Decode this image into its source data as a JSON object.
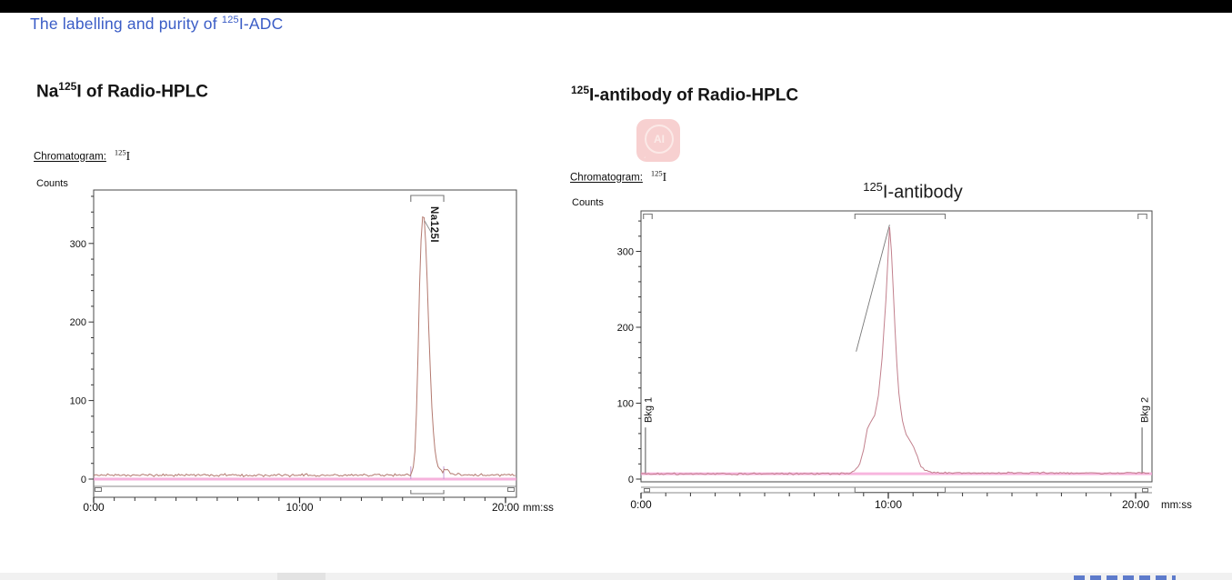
{
  "slide": {
    "title_prefix": "The labelling and purity of ",
    "title_sup": "125",
    "title_suffix": "I-ADC",
    "accent_color": "#3a5cc6",
    "topbar_color": "#000000"
  },
  "panels": {
    "left": {
      "heading_prefix": "Na",
      "heading_sup": "125",
      "heading_suffix": "I of Radio-HPLC",
      "chromatogram_label": "Chromatogram:",
      "isotope_sup": "125",
      "isotope_symbol": "I",
      "counts_label": "Counts"
    },
    "right": {
      "heading_sup": "125",
      "heading_rest": "I-antibody of Radio-HPLC",
      "chromatogram_label": "Chromatogram:",
      "isotope_sup": "125",
      "isotope_symbol": "I",
      "counts_label": "Counts",
      "annotation_sup": "125",
      "annotation_rest": "I-antibody",
      "watermark_text": "AI"
    }
  },
  "footer": {
    "bar_color": "#f1f1f1",
    "segment_color": "#e3e3e3",
    "logo_marks_color": "#4d6ec7"
  },
  "chart_data": [
    {
      "id": "left",
      "type": "line",
      "title": "",
      "ylabel": "Counts",
      "x_unit": "mm:ss",
      "x_axis": {
        "max_min": 20.5,
        "minor_step_min": 1,
        "ticks": [
          {
            "t": 0,
            "label": "0:00"
          },
          {
            "t": 10,
            "label": "10:00"
          },
          {
            "t": 20,
            "label": "20:00"
          }
        ]
      },
      "y_axis": {
        "max": 365,
        "minor_step": 20,
        "major_step": 100,
        "labels": [
          0,
          100,
          200,
          300
        ]
      },
      "colors": {
        "trace": "#b3796f",
        "baseline": "#f4a0d4",
        "frame": "#4a4a4a",
        "marker_gray": "#8a8a8a",
        "integration": "#c39bd3"
      },
      "baseline_counts": 5,
      "noise_amp": 2.1,
      "series": [
        {
          "name": "125I trace",
          "points": [
            [
              0,
              5
            ],
            [
              15.35,
              5
            ],
            [
              15.5,
              10
            ],
            [
              15.62,
              40
            ],
            [
              15.72,
              120
            ],
            [
              15.82,
              240
            ],
            [
              15.92,
              320
            ],
            [
              16.0,
              340
            ],
            [
              16.05,
              333
            ],
            [
              16.15,
              290
            ],
            [
              16.3,
              170
            ],
            [
              16.45,
              75
            ],
            [
              16.6,
              30
            ],
            [
              16.75,
              14
            ],
            [
              16.95,
              9
            ],
            [
              17.15,
              13
            ],
            [
              17.35,
              7
            ],
            [
              18.0,
              5
            ],
            [
              20.5,
              5
            ]
          ]
        }
      ],
      "peak": {
        "label": "Na125I",
        "retention_min": 16.0,
        "height_counts": 340
      },
      "integration_region": {
        "t0": 15.4,
        "t1": 17.0
      },
      "region_markers": {
        "top_brackets": [
          [
            15.4,
            17.0
          ]
        ],
        "bottom_brackets": [
          [
            15.4,
            17.0
          ]
        ]
      },
      "background_markers": []
    },
    {
      "id": "right",
      "type": "line",
      "title": "125I-antibody",
      "ylabel": "Counts",
      "x_unit": "mm:ss",
      "x_axis": {
        "max_min": 20.6,
        "minor_step_min": 1,
        "ticks": [
          {
            "t": 0,
            "label": "0:00"
          },
          {
            "t": 10,
            "label": "10:00"
          },
          {
            "t": 20,
            "label": "20:00"
          }
        ]
      },
      "y_axis": {
        "max": 350,
        "minor_step": 20,
        "major_step": 100,
        "labels": [
          0,
          100,
          200,
          300
        ]
      },
      "colors": {
        "trace": "#c2808d",
        "baseline": "#f6a3d7",
        "frame": "#4a4a4a",
        "marker_gray": "#8a8a8a",
        "leader": "#777777"
      },
      "baseline_counts": 7,
      "noise_amp": 1.6,
      "series": [
        {
          "name": "125I-antibody trace",
          "points": [
            [
              0,
              7
            ],
            [
              8.3,
              7
            ],
            [
              8.55,
              9
            ],
            [
              8.8,
              16
            ],
            [
              9.0,
              38
            ],
            [
              9.15,
              66
            ],
            [
              9.3,
              76
            ],
            [
              9.45,
              84
            ],
            [
              9.6,
              110
            ],
            [
              9.75,
              160
            ],
            [
              9.9,
              235
            ],
            [
              10.05,
              332
            ],
            [
              10.15,
              290
            ],
            [
              10.25,
              210
            ],
            [
              10.4,
              120
            ],
            [
              10.55,
              80
            ],
            [
              10.7,
              60
            ],
            [
              10.85,
              52
            ],
            [
              11.0,
              44
            ],
            [
              11.15,
              32
            ],
            [
              11.3,
              18
            ],
            [
              11.5,
              11
            ],
            [
              11.8,
              9
            ],
            [
              12.5,
              8
            ],
            [
              20.6,
              8
            ]
          ]
        }
      ],
      "peak": {
        "label": "125I-antibody",
        "retention_min": 10.05,
        "height_counts": 332
      },
      "integration_region": {
        "t0": 8.65,
        "t1": 12.3
      },
      "region_markers": {
        "top_brackets": [
          [
            0.1,
            0.45
          ],
          [
            8.65,
            12.3
          ],
          [
            20.1,
            20.45
          ]
        ],
        "bottom_brackets": [
          [
            8.65,
            12.3
          ]
        ]
      },
      "background_markers": [
        {
          "label": "Bkg 1",
          "t": 0.18
        },
        {
          "label": "Bkg 2",
          "t": 20.26
        }
      ],
      "annotation_line": {
        "from_t": 8.7,
        "from_c": 168,
        "to_t": 10.05,
        "to_c": 335
      }
    }
  ]
}
